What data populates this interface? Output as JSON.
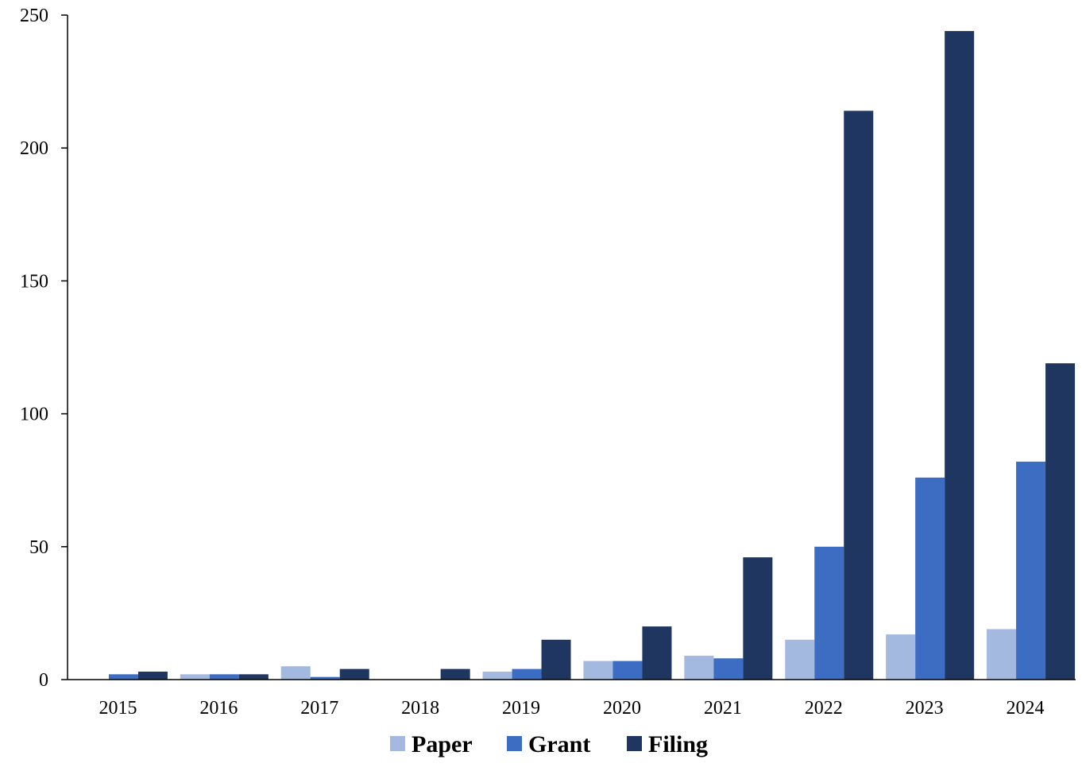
{
  "chart_data": {
    "type": "bar",
    "title": "",
    "xlabel": "",
    "ylabel": "",
    "categories": [
      "2015",
      "2016",
      "2017",
      "2018",
      "2019",
      "2020",
      "2021",
      "2022",
      "2023",
      "2024"
    ],
    "series": [
      {
        "name": "Paper",
        "color": "#a3b9e0",
        "values": [
          0,
          2,
          5,
          0,
          3,
          7,
          9,
          15,
          17,
          19
        ]
      },
      {
        "name": "Grant",
        "color": "#3d6cc3",
        "values": [
          2,
          2,
          1,
          0,
          4,
          7,
          8,
          50,
          76,
          82
        ]
      },
      {
        "name": "Filing",
        "color": "#1f3661",
        "values": [
          3,
          2,
          4,
          4,
          15,
          20,
          46,
          214,
          244,
          119
        ]
      }
    ],
    "ylim": [
      0,
      250
    ],
    "yticks": [
      0,
      50,
      100,
      150,
      200,
      250
    ],
    "grid": false,
    "legend_position": "bottom-center"
  }
}
